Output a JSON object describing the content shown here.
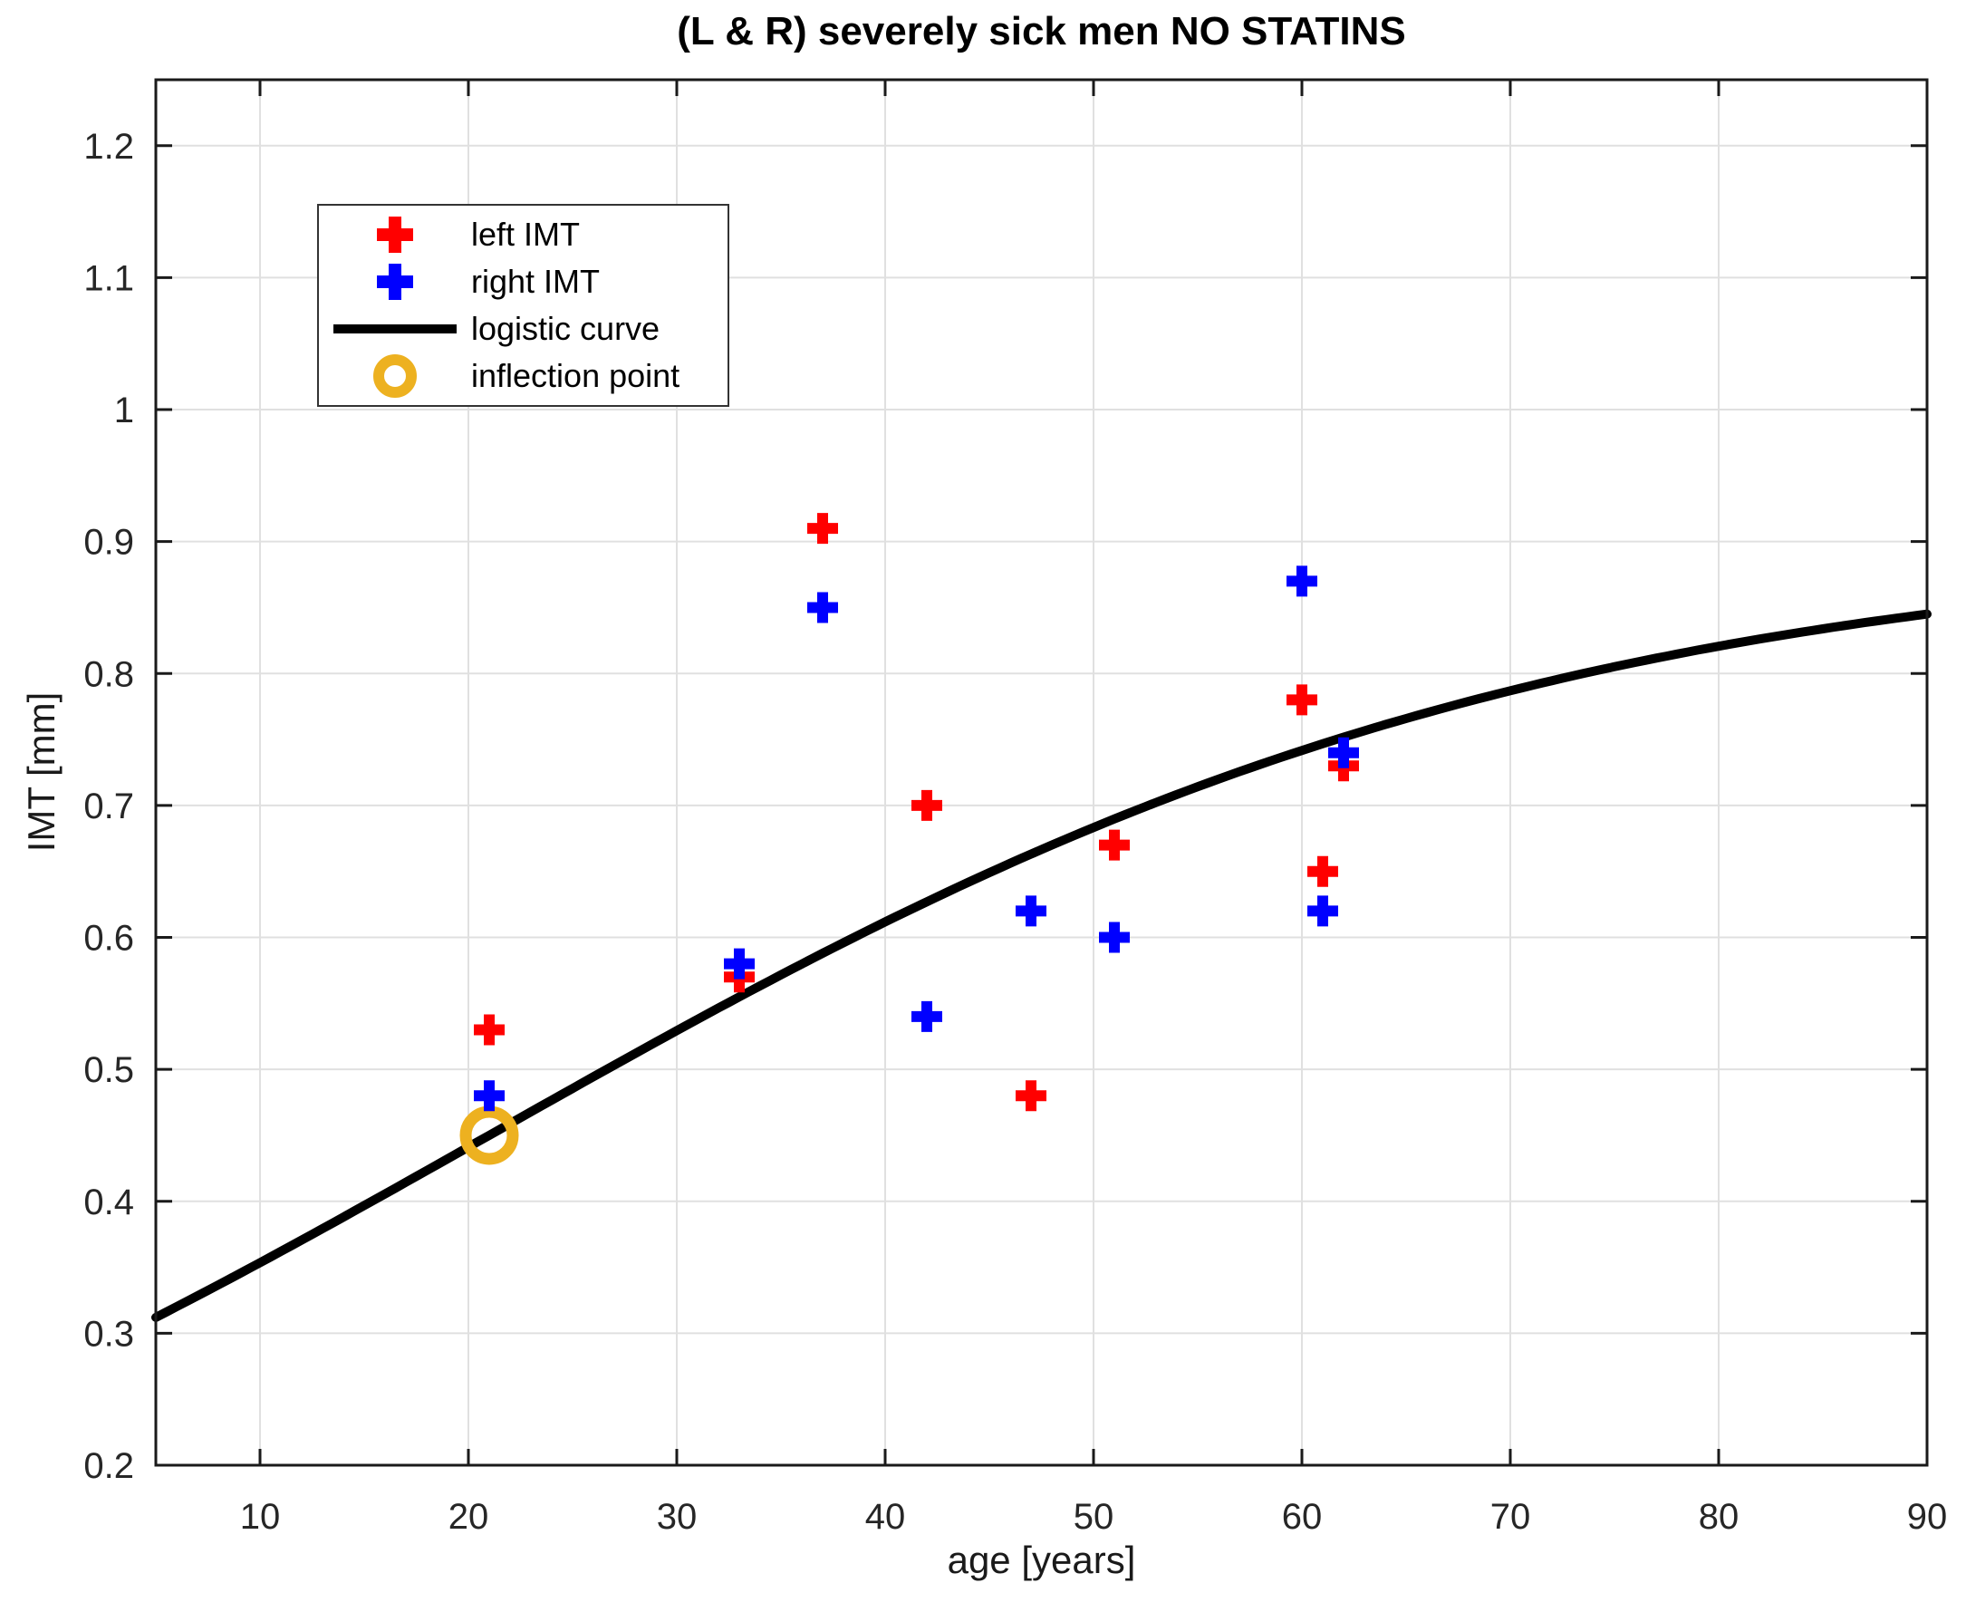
{
  "chart_data": {
    "type": "scatter",
    "title": "(L & R) severely sick men NO STATINS",
    "xlabel": "age [years]",
    "ylabel": "IMT [mm]",
    "xlim": [
      5,
      90
    ],
    "ylim": [
      0.2,
      1.25
    ],
    "xticks": [
      10,
      20,
      30,
      40,
      50,
      60,
      70,
      80,
      90
    ],
    "xtick_labels": [
      "10",
      "20",
      "30",
      "40",
      "50",
      "60",
      "70",
      "80",
      "90"
    ],
    "yticks": [
      0.2,
      0.3,
      0.4,
      0.5,
      0.6,
      0.7,
      0.8,
      0.9,
      1.0,
      1.1,
      1.2
    ],
    "ytick_labels": [
      "0.2",
      "0.3",
      "0.4",
      "0.5",
      "0.6",
      "0.7",
      "0.8",
      "0.9",
      "1",
      "1.1",
      "1.2"
    ],
    "grid": true,
    "legend_position": "upper-left",
    "series": [
      {
        "name": "left IMT",
        "marker": "plus",
        "color": "#ff0000",
        "points": [
          [
            21,
            0.53
          ],
          [
            33,
            0.57
          ],
          [
            37,
            0.91
          ],
          [
            42,
            0.7
          ],
          [
            47,
            0.48
          ],
          [
            51,
            0.67
          ],
          [
            60,
            0.78
          ],
          [
            61,
            0.65
          ],
          [
            62,
            0.73
          ]
        ]
      },
      {
        "name": "right IMT",
        "marker": "plus",
        "color": "#0000ff",
        "points": [
          [
            21,
            0.48
          ],
          [
            33,
            0.58
          ],
          [
            37,
            0.85
          ],
          [
            42,
            0.54
          ],
          [
            47,
            0.62
          ],
          [
            51,
            0.6
          ],
          [
            60,
            0.87
          ],
          [
            61,
            0.62
          ],
          [
            62,
            0.74
          ]
        ]
      }
    ],
    "curve": {
      "name": "logistic curve",
      "color": "#000000",
      "model": "logistic",
      "formula": "y = L / (1 + exp(-k*(x - x0)))",
      "L": 0.9,
      "k": 0.0396,
      "x0": 21,
      "x_start": 5,
      "x_end": 90,
      "y_start": 0.312,
      "y_end": 0.845
    },
    "inflection_point": {
      "name": "inflection point",
      "color": "#edb120",
      "x": 21,
      "y": 0.45
    },
    "colors": {
      "grid": "#e0e0e0",
      "axis": "#1a1a1a",
      "tick_label": "#262626",
      "background": "#ffffff"
    }
  }
}
